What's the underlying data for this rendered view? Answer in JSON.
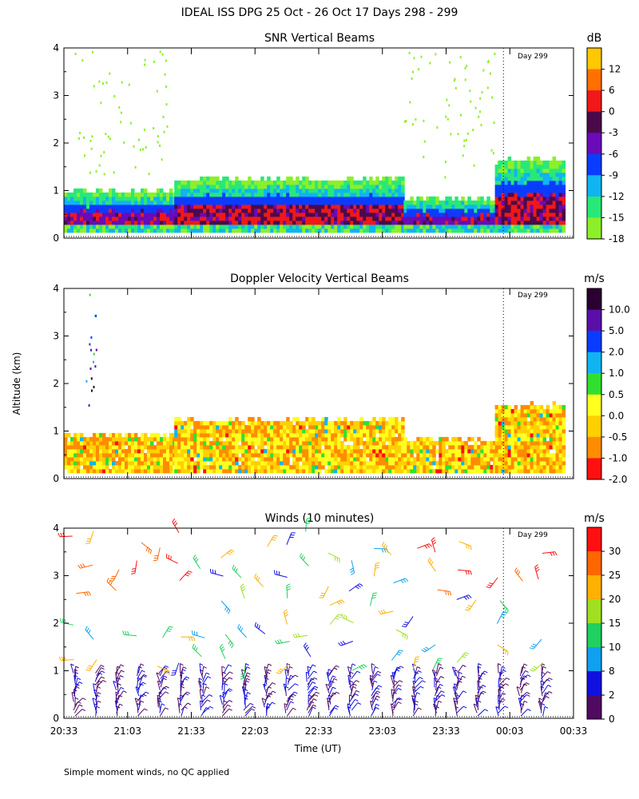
{
  "figure": {
    "title": "IDEAL ISS DPG  25 Oct - 26 Oct 17 Days 298 - 299",
    "y_axis_label": "Altitude (km)",
    "x_axis_label": "Time (UT)",
    "footnote": "Simple moment winds, no QC applied"
  },
  "chart_data": [
    {
      "type": "heatmap",
      "title": "SNR Vertical Beams",
      "xlabel": "",
      "ylabel": "Altitude (km)",
      "x_ticks": [
        "20:33",
        "21:03",
        "21:33",
        "22:03",
        "22:33",
        "23:03",
        "23:33",
        "00:03",
        "00:33"
      ],
      "y_ticks": [
        "0",
        "1",
        "2",
        "3",
        "4"
      ],
      "xlim_minutes": [
        0,
        240
      ],
      "ylim": [
        0,
        4
      ],
      "day_marker": {
        "label": "Day 299",
        "minute": 207
      },
      "colorbar": {
        "unit": "dB",
        "labels": [
          "12",
          "6",
          "0",
          "-3",
          "-6",
          "-9",
          "-12",
          "-15",
          "-18"
        ],
        "colors": [
          "#ffc800",
          "#ff7000",
          "#f01818",
          "#4a0a4a",
          "#6a0ab8",
          "#0a3cff",
          "#10b4f0",
          "#28e878",
          "#8cf028"
        ]
      },
      "regions": [
        {
          "t0": 0,
          "t1": 52,
          "top": 0.95,
          "palette": "snr_low",
          "seed": 1
        },
        {
          "t0": 52,
          "t1": 160,
          "top": 1.2,
          "palette": "snr_mid",
          "seed": 2
        },
        {
          "t0": 160,
          "t1": 203,
          "top": 0.8,
          "palette": "snr_low",
          "seed": 3
        },
        {
          "t0": 203,
          "t1": 235,
          "top": 1.6,
          "palette": "snr_mid",
          "seed": 4
        }
      ]
    },
    {
      "type": "heatmap",
      "title": "Doppler Velocity Vertical Beams",
      "xlabel": "",
      "ylabel": "Altitude (km)",
      "x_ticks": [
        "20:33",
        "21:03",
        "21:33",
        "22:03",
        "22:33",
        "23:03",
        "23:33",
        "00:03",
        "00:33"
      ],
      "y_ticks": [
        "0",
        "1",
        "2",
        "3",
        "4"
      ],
      "xlim_minutes": [
        0,
        240
      ],
      "ylim": [
        0,
        4
      ],
      "day_marker": {
        "label": "Day 299",
        "minute": 207
      },
      "colorbar": {
        "unit": "m/s",
        "labels": [
          "10.0",
          "5.0",
          "2.0",
          "1.0",
          "0.5",
          "0.0",
          "-0.5",
          "-1.0",
          "-2.0"
        ],
        "colors": [
          "#2a0030",
          "#5a10a8",
          "#0a3cff",
          "#10b4f0",
          "#30e030",
          "#ffff20",
          "#ffd000",
          "#ff8c00",
          "#ff1010"
        ]
      },
      "regions": [
        {
          "t0": 0,
          "t1": 52,
          "top": 0.9,
          "palette": "vel",
          "seed": 5
        },
        {
          "t0": 52,
          "t1": 160,
          "top": 1.2,
          "palette": "vel",
          "seed": 6
        },
        {
          "t0": 160,
          "t1": 203,
          "top": 0.8,
          "palette": "vel",
          "seed": 7
        },
        {
          "t0": 203,
          "t1": 235,
          "top": 1.5,
          "palette": "vel",
          "seed": 8
        }
      ]
    },
    {
      "type": "scatter",
      "title": "Winds (10 minutes)",
      "xlabel": "Time (UT)",
      "ylabel": "Altitude (km)",
      "x_ticks": [
        "20:33",
        "21:03",
        "21:33",
        "22:03",
        "22:33",
        "23:03",
        "23:33",
        "00:03",
        "00:33"
      ],
      "y_ticks": [
        "0",
        "1",
        "2",
        "3",
        "4"
      ],
      "xlim_minutes": [
        0,
        240
      ],
      "ylim": [
        0,
        4
      ],
      "day_marker": {
        "label": "Day 299",
        "minute": 207
      },
      "colorbar": {
        "unit": "m/s",
        "labels": [
          "30",
          "25",
          "20",
          "15",
          "10",
          "8",
          "2",
          "0"
        ],
        "colors": [
          "#ff1010",
          "#ff6600",
          "#ffb000",
          "#a0e020",
          "#20d060",
          "#10a0f0",
          "#1010e0",
          "#500a60"
        ]
      },
      "barb_times_minutes": [
        5,
        15,
        25,
        35,
        45,
        55,
        65,
        75,
        85,
        95,
        105,
        115,
        125,
        135,
        145,
        155,
        165,
        175,
        185,
        195,
        205,
        215,
        225
      ]
    }
  ]
}
